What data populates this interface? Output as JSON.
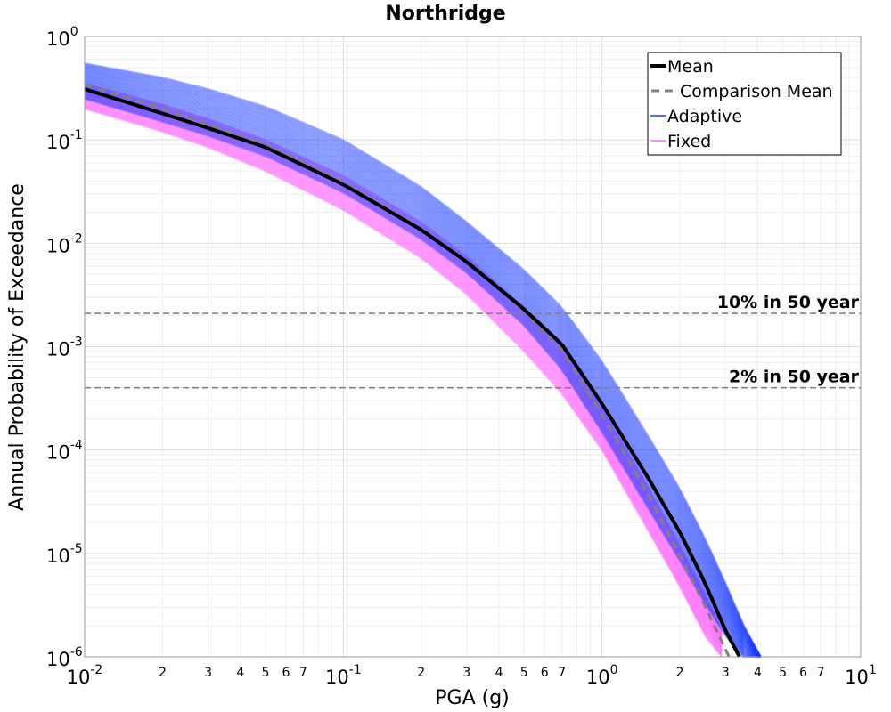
{
  "chart_data": {
    "type": "line",
    "title": "Northridge",
    "xlabel": "PGA (g)",
    "ylabel": "Annual Probability of Exceedance",
    "xscale": "log",
    "yscale": "log",
    "xlim": [
      0.01,
      10
    ],
    "ylim": [
      1e-06,
      1
    ],
    "grid": true,
    "legend_position": "top-right",
    "x_major_ticks": [
      {
        "value": 0.01,
        "base": "10",
        "exp": "-2"
      },
      {
        "value": 0.1,
        "base": "10",
        "exp": "-1"
      },
      {
        "value": 1,
        "base": "10",
        "exp": "0"
      },
      {
        "value": 10,
        "base": "10",
        "exp": "1"
      }
    ],
    "y_major_ticks": [
      {
        "value": 1,
        "base": "10",
        "exp": "0"
      },
      {
        "value": 0.1,
        "base": "10",
        "exp": "-1"
      },
      {
        "value": 0.01,
        "base": "10",
        "exp": "-2"
      },
      {
        "value": 0.001,
        "base": "10",
        "exp": "-3"
      },
      {
        "value": 0.0001,
        "base": "10",
        "exp": "-4"
      },
      {
        "value": 1e-05,
        "base": "10",
        "exp": "-5"
      },
      {
        "value": 1e-06,
        "base": "10",
        "exp": "-6"
      }
    ],
    "x_minor_tick_labels": [
      "2",
      "3",
      "4",
      "5",
      "6",
      "7"
    ],
    "x_minor_tick_multipliers": [
      2,
      3,
      4,
      5,
      6,
      7
    ],
    "reference_lines": [
      {
        "label": "10% in 50 year",
        "y": 0.0021
      },
      {
        "label": "2% in 50 year",
        "y": 0.0004
      }
    ],
    "series": [
      {
        "name": "Mean",
        "color": "#000000",
        "style": "solid",
        "x": [
          0.01,
          0.02,
          0.03,
          0.05,
          0.1,
          0.2,
          0.3,
          0.5,
          0.7,
          1.0,
          1.5,
          2.0,
          2.5,
          3.0,
          3.4
        ],
        "y": [
          0.31,
          0.18,
          0.13,
          0.085,
          0.037,
          0.0135,
          0.0066,
          0.0023,
          0.00105,
          0.00028,
          5.5e-05,
          1.6e-05,
          5.2e-06,
          1.8e-06,
          1e-06
        ]
      },
      {
        "name": "Comparison Mean",
        "color": "#808080",
        "style": "dashed",
        "x": [
          0.01,
          0.02,
          0.03,
          0.05,
          0.1,
          0.2,
          0.3,
          0.5,
          0.7,
          1.0,
          1.5,
          2.0,
          2.5,
          2.8,
          3.1
        ],
        "y": [
          0.34,
          0.2,
          0.14,
          0.09,
          0.039,
          0.0138,
          0.0066,
          0.0022,
          0.00092,
          0.00022,
          3.8e-05,
          9.5e-06,
          3.1e-06,
          1.7e-06,
          1e-06
        ]
      },
      {
        "name": "Adaptive",
        "color": "#1a3cff",
        "band": true,
        "x": [
          0.01,
          0.02,
          0.03,
          0.05,
          0.1,
          0.2,
          0.3,
          0.5,
          0.7,
          1.0,
          1.5,
          2.0,
          2.5,
          3.0,
          3.5,
          4.1
        ],
        "y_lower": [
          0.25,
          0.15,
          0.11,
          0.07,
          0.031,
          0.011,
          0.0052,
          0.0016,
          0.0006,
          0.00015,
          2.8e-05,
          8.5e-06,
          3.3e-06,
          1.6e-06,
          1e-06,
          1e-06
        ],
        "y_upper": [
          0.55,
          0.4,
          0.31,
          0.21,
          0.1,
          0.035,
          0.016,
          0.0055,
          0.0024,
          0.00072,
          0.00014,
          4.2e-05,
          1.4e-05,
          5.2e-06,
          2.1e-06,
          1e-06
        ]
      },
      {
        "name": "Fixed",
        "color": "#ff66ff",
        "band": true,
        "x": [
          0.01,
          0.02,
          0.03,
          0.05,
          0.1,
          0.2,
          0.3,
          0.5,
          0.7,
          1.0,
          1.5,
          2.0,
          2.5,
          2.9
        ],
        "y_lower": [
          0.2,
          0.12,
          0.085,
          0.05,
          0.021,
          0.0072,
          0.0032,
          0.0009,
          0.00035,
          0.0001,
          1.7e-05,
          4.8e-06,
          1.6e-06,
          1e-06
        ],
        "y_upper": [
          0.35,
          0.22,
          0.16,
          0.1,
          0.045,
          0.016,
          0.0075,
          0.0024,
          0.00098,
          0.00025,
          4.5e-05,
          1.2e-05,
          4e-06,
          1.8e-06
        ]
      }
    ]
  }
}
